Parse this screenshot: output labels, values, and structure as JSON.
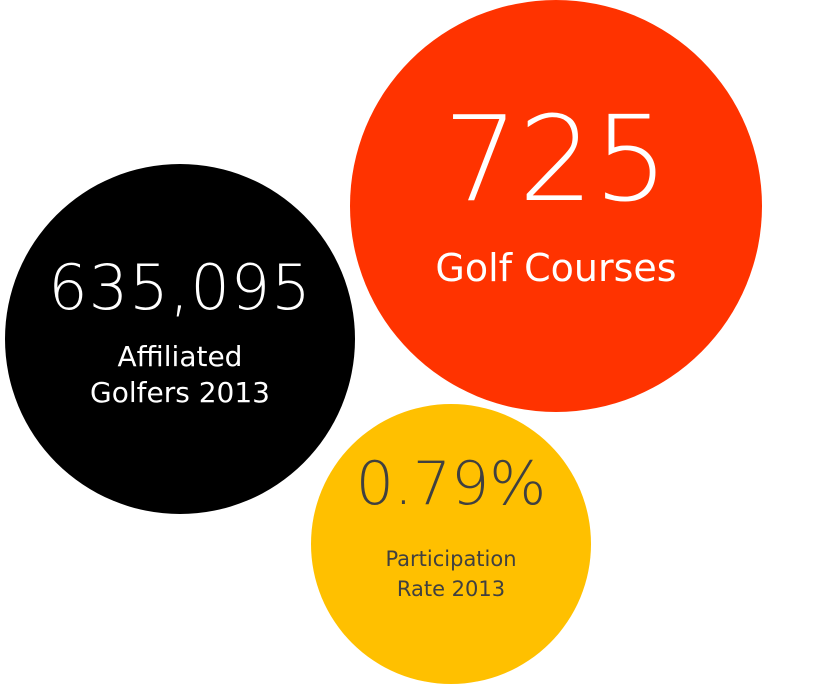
{
  "stats": [
    {
      "value": "635,095",
      "label": "Affiliated Golfers 2013",
      "bg_color": "#000000",
      "text_color": "#ffffff"
    },
    {
      "value": "725",
      "label": "Golf Courses",
      "bg_color": "#ff3300",
      "text_color": "#ffffff"
    },
    {
      "value": "0.79%",
      "label": "Participation Rate 2013",
      "bg_color": "#ffc000",
      "text_color": "#404040"
    }
  ]
}
